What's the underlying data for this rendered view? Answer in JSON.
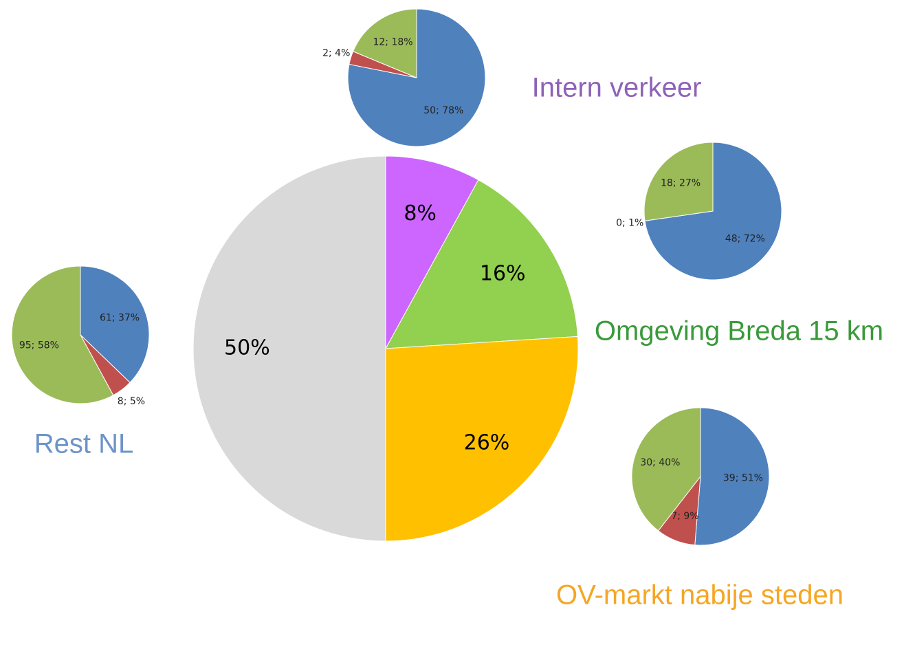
{
  "chart_data": [
    {
      "type": "pie",
      "values": [
        8,
        16,
        26,
        50
      ],
      "value_labels": [
        "8%",
        "16%",
        "26%",
        "50%"
      ],
      "colors": [
        "#cc66ff",
        "#92d050",
        "#ffc000",
        "#d9d9d9"
      ]
    },
    {
      "type": "pie",
      "title": "Intern verkeer",
      "title_color": "#8e62b8",
      "values": [
        50,
        2,
        12
      ],
      "value_labels": [
        "50; 78%",
        "2; 4%",
        "12; 18%"
      ],
      "colors": [
        "#4f81bd",
        "#c0504d",
        "#9bbb59"
      ]
    },
    {
      "type": "pie",
      "title": "Omgeving Breda 15 km",
      "title_color": "#3a9a3a",
      "values": [
        48,
        0,
        18
      ],
      "value_labels": [
        "48; 72%",
        "0; 1%",
        "18; 27%"
      ],
      "colors": [
        "#4f81bd",
        "#c0504d",
        "#9bbb59"
      ]
    },
    {
      "type": "pie",
      "title": "Rest NL",
      "title_color": "#6d94c9",
      "values": [
        61,
        8,
        95
      ],
      "value_labels": [
        "61; 37%",
        "8; 5%",
        "95; 58%"
      ],
      "colors": [
        "#4f81bd",
        "#c0504d",
        "#9bbb59"
      ]
    },
    {
      "type": "pie",
      "title": "OV-markt nabije steden",
      "title_color": "#f5a623",
      "values": [
        39,
        7,
        30
      ],
      "value_labels": [
        "39; 51%",
        "7; 9%",
        "30; 40%"
      ],
      "colors": [
        "#4f81bd",
        "#c0504d",
        "#9bbb59"
      ]
    }
  ]
}
